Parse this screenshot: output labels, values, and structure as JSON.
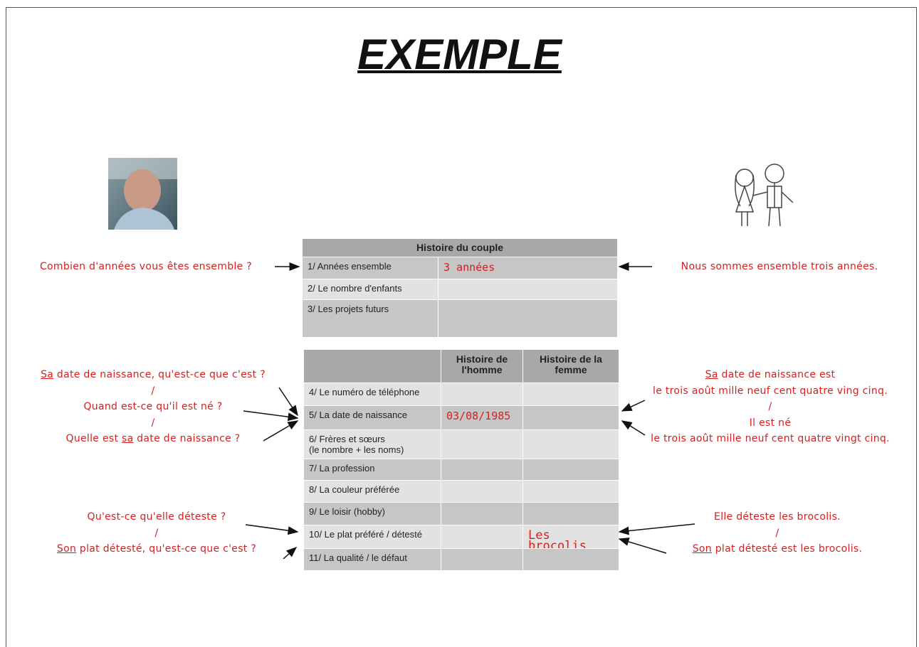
{
  "title": "EXEMPLE",
  "table1": {
    "header": "Histoire du couple",
    "rows": [
      {
        "label": "1/ Années ensemble",
        "answer": "3 années"
      },
      {
        "label": "2/ Le nombre d'enfants"
      },
      {
        "label": "3/ Les projets futurs"
      }
    ]
  },
  "table2": {
    "headers": [
      "Histoire de l'homme",
      "Histoire de la femme"
    ],
    "rows": [
      {
        "label": [
          "4/ Le numéro de téléphone"
        ]
      },
      {
        "label": [
          "5/ La date de naissance"
        ],
        "homme": "03/08/1985"
      },
      {
        "label": [
          "6/ Frères et sœurs",
          "(le nombre + les noms)"
        ]
      },
      {
        "label": [
          "7/ La profession"
        ]
      },
      {
        "label": [
          "8/ La couleur préférée"
        ]
      },
      {
        "label": [
          "9/ Le loisir (hobby)"
        ]
      },
      {
        "label": [
          "10/ Le plat préféré / détesté"
        ],
        "femme": "Les brocolis"
      },
      {
        "label": [
          "11/ La qualité / le défaut"
        ]
      }
    ]
  },
  "notes": {
    "left1": [
      [
        {
          "t": "Combien d'années vous êtes ensemble ?"
        }
      ]
    ],
    "right1": [
      [
        {
          "t": "Nous sommes ensemble trois années."
        }
      ]
    ],
    "left2": [
      [
        {
          "u": "Sa"
        },
        {
          "t": " date de naissance, qu'est-ce que c'est ?"
        }
      ],
      [
        {
          "t": "/"
        }
      ],
      [
        {
          "t": "Quand est-ce qu'il est né ?"
        }
      ],
      [
        {
          "t": "/"
        }
      ],
      [
        {
          "t": "Quelle est "
        },
        {
          "u": "sa"
        },
        {
          "t": " date de naissance ?"
        }
      ]
    ],
    "right2": [
      [
        {
          "u": "Sa"
        },
        {
          "t": " date de naissance est"
        }
      ],
      [
        {
          "t": "le trois août mille neuf cent quatre ving cinq."
        }
      ],
      [
        {
          "t": "/"
        }
      ],
      [
        {
          "t": "Il est né"
        }
      ],
      [
        {
          "t": "le trois août mille neuf cent quatre vingt cinq."
        }
      ]
    ],
    "left3": [
      [
        {
          "t": "Qu'est-ce qu'elle déteste ?"
        }
      ],
      [
        {
          "t": "/"
        }
      ],
      [
        {
          "u": "Son"
        },
        {
          "t": " plat détesté, qu'est-ce que c'est ?"
        }
      ]
    ],
    "right3": [
      [
        {
          "t": "Elle déteste les brocolis."
        }
      ],
      [
        {
          "t": "/"
        }
      ],
      [
        {
          "u": "Son"
        },
        {
          "t": " plat détesté est les brocolis."
        }
      ]
    ]
  }
}
